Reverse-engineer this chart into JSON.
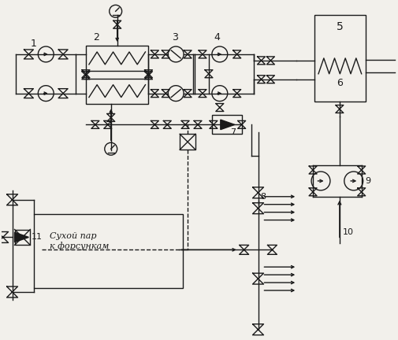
{
  "bg_color": "#f2f0eb",
  "line_color": "#1a1a1a",
  "text_color": "#1a1a1a",
  "annotation_text": "Сухой пар\nк форсункам"
}
